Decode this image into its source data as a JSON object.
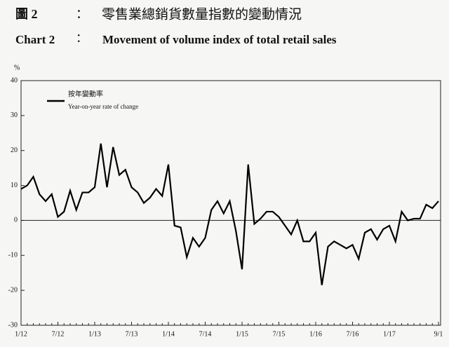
{
  "chart_data": {
    "type": "line",
    "label_zh": "圖 2",
    "colon_zh": "：",
    "title_zh": "零售業總銷貨數量指數的變動情況",
    "label_en": "Chart 2",
    "colon_en": "：",
    "title": "Movement of volume index of total retail sales",
    "y_unit": "%",
    "categories": [
      "1/12",
      null,
      null,
      null,
      null,
      null,
      "7/12",
      null,
      null,
      null,
      null,
      null,
      "1/13",
      null,
      null,
      null,
      null,
      null,
      "7/13",
      null,
      null,
      null,
      null,
      null,
      "1/14",
      null,
      null,
      null,
      null,
      null,
      "7/14",
      null,
      null,
      null,
      null,
      null,
      "1/15",
      null,
      null,
      null,
      null,
      null,
      "7/15",
      null,
      null,
      null,
      null,
      null,
      "1/16",
      null,
      null,
      null,
      null,
      null,
      "7/16",
      null,
      null,
      null,
      null,
      null,
      "1/17",
      null,
      null,
      null,
      null,
      null,
      null,
      null,
      "9/1"
    ],
    "series": [
      {
        "name": "按年變動率",
        "name_en": "Year-on-year rate of change",
        "color": "#000000",
        "values": [
          9,
          10,
          12.5,
          7.5,
          5.5,
          7.5,
          1,
          2.5,
          8.5,
          3,
          8,
          8,
          9.5,
          22,
          9.5,
          21,
          13,
          14.5,
          9.5,
          8,
          5,
          6.5,
          9,
          7,
          16,
          -1.5,
          -2,
          -10.5,
          -5,
          -7.5,
          -5,
          3,
          5.5,
          2,
          5.5,
          -3,
          -14,
          16,
          -1,
          0.5,
          2.5,
          2.5,
          1,
          -1.5,
          -4,
          0,
          -6,
          -6,
          -3.5,
          -18.5,
          -7.5,
          -6,
          -7,
          -8,
          -7,
          -11,
          -3.5,
          -2.5,
          -5.5,
          -2.5,
          -1.5,
          -6,
          2.5,
          0,
          0.5,
          0.5,
          4.5,
          3.5,
          5.5
        ]
      }
    ],
    "ylim": [
      -30,
      40
    ],
    "yticks": [
      -30,
      -20,
      -10,
      0,
      10,
      20,
      30,
      40
    ],
    "zero_line": true
  }
}
